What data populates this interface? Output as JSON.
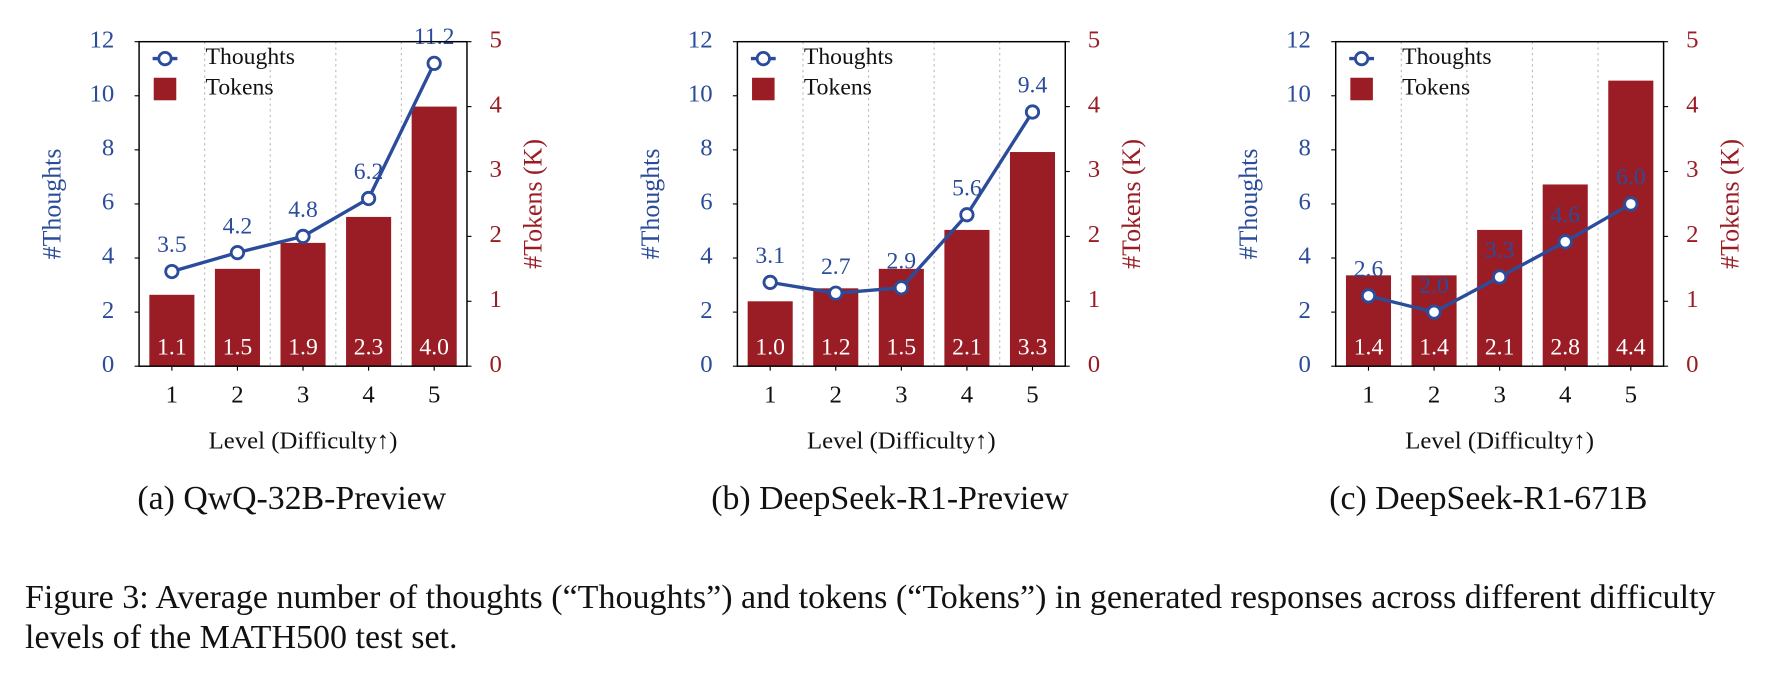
{
  "chart_data": [
    {
      "type": "combo",
      "subtitle": "(a) QwQ-32B-Preview",
      "xlabel": "Level (Difficulty↑)",
      "ylabel": "#Thoughts",
      "y2label": "#Tokens (K)",
      "categories": [
        "1",
        "2",
        "3",
        "4",
        "5"
      ],
      "series": [
        {
          "name": "Thoughts",
          "type": "line",
          "color": "#2b4c9b",
          "values": [
            3.5,
            4.2,
            4.8,
            6.2,
            11.2
          ],
          "value_labels": [
            "3.5",
            "4.2",
            "4.8",
            "6.2",
            "11.2"
          ]
        },
        {
          "name": "Tokens",
          "type": "bar",
          "axis": "y2",
          "color": "#9a1d25",
          "values": [
            1.1,
            1.5,
            1.9,
            2.3,
            4.0
          ],
          "value_labels": [
            "1.1",
            "1.5",
            "1.9",
            "2.3",
            "4.0"
          ]
        }
      ],
      "ylim": [
        0,
        12
      ],
      "yticks": [
        0,
        2,
        4,
        6,
        8,
        10,
        12
      ],
      "y2lim": [
        0,
        5
      ],
      "y2ticks": [
        0,
        1,
        2,
        3,
        4,
        5
      ],
      "legend": "upper left"
    },
    {
      "type": "combo",
      "subtitle": "(b) DeepSeek-R1-Preview",
      "xlabel": "Level (Difficulty↑)",
      "ylabel": "#Thoughts",
      "y2label": "#Tokens (K)",
      "categories": [
        "1",
        "2",
        "3",
        "4",
        "5"
      ],
      "series": [
        {
          "name": "Thoughts",
          "type": "line",
          "color": "#2b4c9b",
          "values": [
            3.1,
            2.7,
            2.9,
            5.6,
            9.4
          ],
          "value_labels": [
            "3.1",
            "2.7",
            "2.9",
            "5.6",
            "9.4"
          ]
        },
        {
          "name": "Tokens",
          "type": "bar",
          "axis": "y2",
          "color": "#9a1d25",
          "values": [
            1.0,
            1.2,
            1.5,
            2.1,
            3.3
          ],
          "value_labels": [
            "1.0",
            "1.2",
            "1.5",
            "2.1",
            "3.3"
          ]
        }
      ],
      "ylim": [
        0,
        12
      ],
      "yticks": [
        0,
        2,
        4,
        6,
        8,
        10,
        12
      ],
      "y2lim": [
        0,
        5
      ],
      "y2ticks": [
        0,
        1,
        2,
        3,
        4,
        5
      ],
      "legend": "upper left"
    },
    {
      "type": "combo",
      "subtitle": "(c) DeepSeek-R1-671B",
      "xlabel": "Level (Difficulty↑)",
      "ylabel": "#Thoughts",
      "y2label": "#Tokens (K)",
      "categories": [
        "1",
        "2",
        "3",
        "4",
        "5"
      ],
      "series": [
        {
          "name": "Thoughts",
          "type": "line",
          "color": "#2b4c9b",
          "values": [
            2.6,
            2.0,
            3.3,
            4.6,
            6.0
          ],
          "value_labels": [
            "2.6",
            "2.0",
            "3.3",
            "4.6",
            "6.0"
          ]
        },
        {
          "name": "Tokens",
          "type": "bar",
          "axis": "y2",
          "color": "#9a1d25",
          "values": [
            1.4,
            1.4,
            2.1,
            2.8,
            4.4
          ],
          "value_labels": [
            "1.4",
            "1.4",
            "2.1",
            "2.8",
            "4.4"
          ]
        }
      ],
      "ylim": [
        0,
        12
      ],
      "yticks": [
        0,
        2,
        4,
        6,
        8,
        10,
        12
      ],
      "y2lim": [
        0,
        5
      ],
      "y2ticks": [
        0,
        1,
        2,
        3,
        4,
        5
      ],
      "legend": "upper left"
    }
  ],
  "caption": "Figure 3: Average number of thoughts (“Thoughts”) and tokens (“Tokens”) in generated responses across different difficulty levels of the MATH500 test set."
}
